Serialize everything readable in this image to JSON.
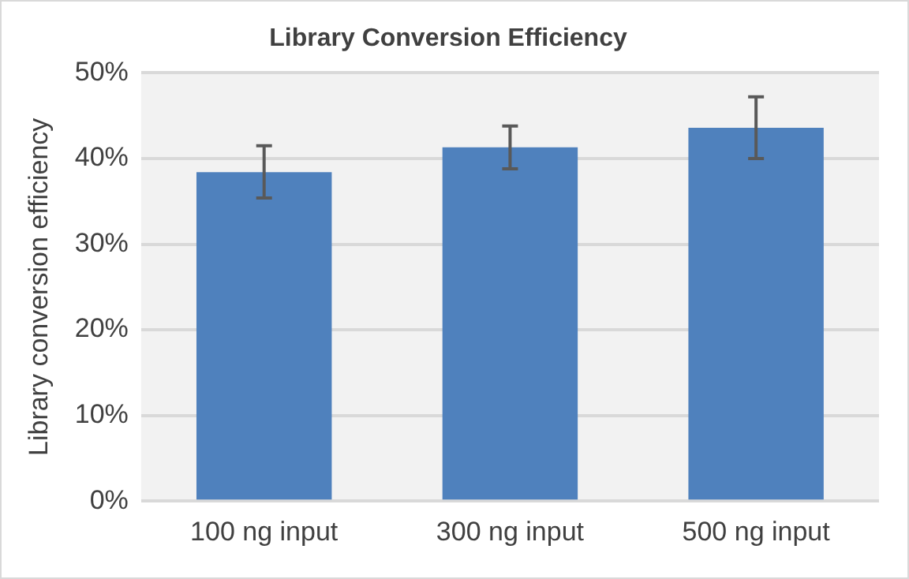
{
  "chart_data": {
    "type": "bar",
    "title": "Library Conversion Efficiency",
    "ylabel": "Library conversion efficiency",
    "categories": [
      "100 ng input",
      "300 ng input",
      "500 ng input"
    ],
    "values": [
      38.4,
      41.3,
      43.6
    ],
    "color": "#4f81bd",
    "errors": [
      [
        35.4,
        41.5
      ],
      [
        38.8,
        43.8
      ],
      [
        40.0,
        47.2
      ]
    ],
    "ylim": [
      0,
      50
    ],
    "yticks": [
      {
        "value": 0,
        "label": "0%"
      },
      {
        "value": 10,
        "label": "10%"
      },
      {
        "value": 20,
        "label": "20%"
      },
      {
        "value": 30,
        "label": "30%"
      },
      {
        "value": 40,
        "label": "40%"
      },
      {
        "value": 50,
        "label": "50%"
      }
    ],
    "grid": "y"
  }
}
